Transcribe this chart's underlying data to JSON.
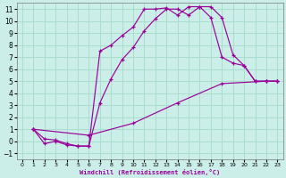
{
  "xlabel": "Windchill (Refroidissement éolien,°C)",
  "background_color": "#cceee8",
  "grid_color": "#aaddcc",
  "line_color": "#990099",
  "xlim": [
    -0.5,
    23.5
  ],
  "ylim": [
    -1.5,
    11.5
  ],
  "xticks": [
    0,
    1,
    2,
    3,
    4,
    5,
    6,
    7,
    8,
    9,
    10,
    11,
    12,
    13,
    14,
    15,
    16,
    17,
    18,
    19,
    20,
    21,
    22,
    23
  ],
  "yticks": [
    -1,
    0,
    1,
    2,
    3,
    4,
    5,
    6,
    7,
    8,
    9,
    10,
    11
  ],
  "line1_x": [
    1,
    2,
    3,
    4,
    5,
    6,
    7,
    8,
    9,
    10,
    11,
    12,
    13,
    14,
    15,
    16,
    17,
    18,
    19,
    20,
    21,
    22,
    23
  ],
  "line1_y": [
    1.0,
    -0.2,
    0.0,
    -0.3,
    -0.4,
    -0.4,
    7.5,
    8.0,
    8.8,
    9.5,
    11.0,
    11.0,
    11.1,
    10.5,
    11.2,
    11.2,
    10.3,
    7.0,
    6.5,
    6.3,
    5.0,
    5.0,
    5.0
  ],
  "line2_x": [
    1,
    2,
    3,
    4,
    5,
    6,
    7,
    8,
    9,
    10,
    11,
    12,
    13,
    14,
    15,
    16,
    17,
    18,
    19,
    20,
    21,
    22,
    23
  ],
  "line2_y": [
    1.0,
    0.2,
    0.1,
    -0.2,
    -0.4,
    -0.4,
    3.2,
    5.2,
    6.8,
    7.8,
    9.2,
    10.2,
    11.0,
    11.0,
    10.5,
    11.2,
    11.2,
    10.3,
    7.2,
    6.3,
    5.0,
    5.0,
    5.0
  ],
  "line3_x": [
    1,
    6,
    10,
    14,
    18,
    22,
    23
  ],
  "line3_y": [
    1.0,
    0.5,
    1.5,
    3.2,
    4.8,
    5.0,
    5.0
  ]
}
